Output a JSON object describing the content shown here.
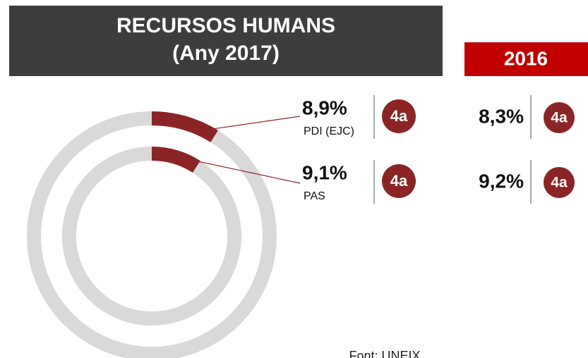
{
  "chart_data": {
    "type": "donut",
    "title": "RECURSOS HUMANS",
    "subtitle": "(Any 2017)",
    "series": [
      {
        "name": "PDI (EJC)",
        "color": "#8b2525",
        "values": [
          8.9
        ],
        "value_labels": [
          "8,9%"
        ],
        "rank": "4a"
      },
      {
        "name": "PAS",
        "color": "#8b2525",
        "values": [
          9.1
        ],
        "value_labels": [
          "9,1%"
        ],
        "rank": "4a"
      }
    ],
    "comparison": {
      "title": "2016",
      "values": [
        8.3,
        9.2
      ],
      "value_labels": [
        "8,3%",
        "9,2%"
      ],
      "ranks": [
        "4a",
        "4a"
      ]
    },
    "source": "Font: UNEIX"
  }
}
